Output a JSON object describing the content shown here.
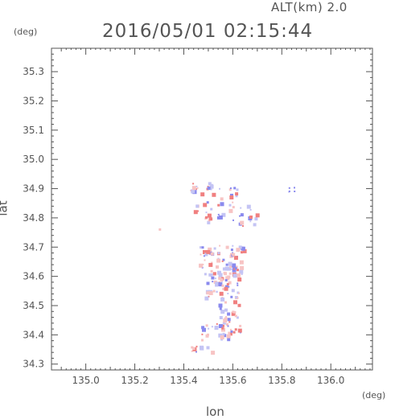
{
  "header": {
    "timestamp": "2016/05/01 02:15:44",
    "altitude_label": "ALT(km) 2.0"
  },
  "chart_data": {
    "type": "heatmap",
    "title": "2016/05/01 02:15:44",
    "subtitle": "ALT(km) 2.0",
    "xlabel": "lon",
    "ylabel": "lat",
    "x_unit": "(deg)",
    "y_unit": "(deg)",
    "xlim": [
      134.86,
      136.17
    ],
    "ylim": [
      34.28,
      35.38
    ],
    "x_ticks": [
      "135.0",
      "135.2",
      "135.4",
      "135.6",
      "135.8",
      "136.0"
    ],
    "y_ticks": [
      "34.3",
      "34.4",
      "34.5",
      "34.6",
      "34.7",
      "34.8",
      "34.9",
      "35.0",
      "35.1",
      "35.2",
      "35.3"
    ],
    "grid": false,
    "colors": {
      "positive": "#f08080",
      "negative": "#8a8aee",
      "weak_positive": "#f7c4c4",
      "weak_negative": "#c4c4f4",
      "frame": "#555555"
    },
    "clusters": [
      {
        "lon": 135.47,
        "lat": 34.905,
        "spread_lon": 0.05,
        "spread_lat": 0.02,
        "count": 18
      },
      {
        "lon": 135.58,
        "lat": 34.89,
        "spread_lon": 0.04,
        "spread_lat": 0.02,
        "count": 10
      },
      {
        "lon": 135.84,
        "lat": 34.895,
        "spread_lon": 0.015,
        "spread_lat": 0.012,
        "count": 5
      },
      {
        "lon": 135.52,
        "lat": 34.82,
        "spread_lon": 0.08,
        "spread_lat": 0.04,
        "count": 26
      },
      {
        "lon": 135.66,
        "lat": 34.8,
        "spread_lon": 0.04,
        "spread_lat": 0.05,
        "count": 14
      },
      {
        "lon": 135.3,
        "lat": 34.765,
        "spread_lon": 0.005,
        "spread_lat": 0.005,
        "count": 1
      },
      {
        "lon": 135.55,
        "lat": 34.66,
        "spread_lon": 0.09,
        "spread_lat": 0.05,
        "count": 70
      },
      {
        "lon": 135.55,
        "lat": 34.58,
        "spread_lon": 0.07,
        "spread_lat": 0.05,
        "count": 50
      },
      {
        "lon": 135.58,
        "lat": 34.49,
        "spread_lon": 0.05,
        "spread_lat": 0.06,
        "count": 30
      },
      {
        "lon": 135.55,
        "lat": 34.41,
        "spread_lon": 0.08,
        "spread_lat": 0.03,
        "count": 32
      },
      {
        "lon": 135.47,
        "lat": 34.355,
        "spread_lon": 0.05,
        "spread_lat": 0.012,
        "count": 12
      }
    ]
  }
}
